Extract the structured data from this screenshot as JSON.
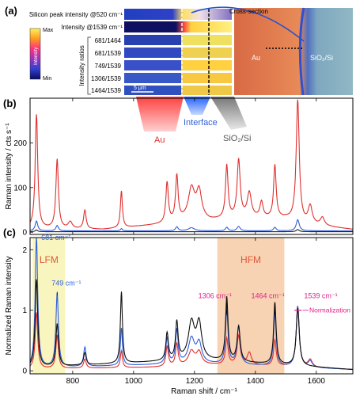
{
  "panel_a": {
    "tag": "(a)",
    "row_labels": [
      "Silicon peak intensity @520 cm⁻¹",
      "Intensity @1539 cm⁻¹"
    ],
    "ratio_labels": [
      "681/1464",
      "681/1539",
      "749/1539",
      "1306/1539",
      "1464/1539"
    ],
    "ratio_axis_label": "Intensity ratios",
    "colorbar": {
      "max": "Max",
      "min": "Min",
      "mid": "Intensity"
    },
    "scalebar": "5 μm",
    "cross_section": "Cross-section",
    "photo_labels": {
      "au": "Au",
      "sio2": "SiO₂/Si"
    }
  },
  "funnels": {
    "au": "Au",
    "interface": "Interface",
    "sio2": "SiO₂/Si"
  },
  "colors": {
    "au": "#e03030",
    "interface": "#2f5fd8",
    "sio2": "#222222",
    "magenta": "#e0208a"
  },
  "chart_data": [
    {
      "type": "line",
      "tag": "(b)",
      "ylabel": "Raman intensity / cts s⁻¹",
      "xlim": [
        660,
        1720
      ],
      "ylim": [
        -5,
        300
      ],
      "yticks": [
        "0",
        "100",
        "200"
      ],
      "series": [
        {
          "name": "Au",
          "color": "#e03030",
          "peaks": [
            [
              681,
              255,
              5
            ],
            [
              749,
              155,
              5
            ],
            [
              792,
              15,
              8
            ],
            [
              840,
              42,
              5
            ],
            [
              960,
              82,
              4
            ],
            [
              1110,
              90,
              5
            ],
            [
              1142,
              100,
              5
            ],
            [
              1190,
              65,
              12
            ],
            [
              1215,
              60,
              10
            ],
            [
              1306,
              118,
              5
            ],
            [
              1345,
              128,
              6
            ],
            [
              1380,
              55,
              8
            ],
            [
              1420,
              35,
              6
            ],
            [
              1464,
              118,
              5
            ],
            [
              1539,
              272,
              6
            ],
            [
              1580,
              40,
              8
            ],
            [
              1620,
              18,
              8
            ]
          ],
          "baseline": [
            [
              660,
              8
            ],
            [
              900,
              6
            ],
            [
              1100,
              18
            ],
            [
              1200,
              32
            ],
            [
              1250,
              26
            ],
            [
              1350,
              32
            ],
            [
              1500,
              30
            ],
            [
              1560,
              18
            ],
            [
              1720,
              6
            ]
          ]
        },
        {
          "name": "Interface",
          "color": "#2f5fd8",
          "peaks": [
            [
              681,
              22,
              5
            ],
            [
              749,
              12,
              5
            ],
            [
              960,
              5,
              4
            ],
            [
              1142,
              9,
              5
            ],
            [
              1190,
              7,
              12
            ],
            [
              1306,
              8,
              5
            ],
            [
              1345,
              10,
              6
            ],
            [
              1464,
              8,
              5
            ],
            [
              1539,
              25,
              6
            ]
          ],
          "baseline": [
            [
              660,
              3
            ],
            [
              1720,
              3
            ]
          ]
        },
        {
          "name": "SiO₂/Si",
          "color": "#222222",
          "peaks": [
            [
              681,
              4,
              5
            ],
            [
              1539,
              5,
              6
            ]
          ],
          "baseline": [
            [
              660,
              1
            ],
            [
              1720,
              1
            ]
          ]
        }
      ]
    },
    {
      "type": "line",
      "tag": "(c)",
      "xlabel": "Raman shift / cm⁻¹",
      "ylabel": "Normalized Raman intensity",
      "xlim": [
        660,
        1720
      ],
      "ylim": [
        -0.05,
        2.2
      ],
      "xticks": [
        "800",
        "1000",
        "1200",
        "1400",
        "1600"
      ],
      "yticks": [
        "0",
        "1",
        "2"
      ],
      "regions": [
        {
          "label": "LFM",
          "from": 668,
          "to": 775,
          "color": "#f6f2a8"
        },
        {
          "label": "HFM",
          "from": 1275,
          "to": 1495,
          "color": "#f4c49a"
        }
      ],
      "annotations": [
        {
          "text": "681 cm⁻¹",
          "x": 681,
          "y": 2.12,
          "color": "#2f5fd8"
        },
        {
          "text": "749 cm⁻¹",
          "x": 749,
          "y": 1.33,
          "color": "#2f5fd8"
        },
        {
          "text": "1306 cm⁻¹",
          "x": 1306,
          "y": 1.15,
          "color": "#e0208a"
        },
        {
          "text": "1464 cm⁻¹",
          "x": 1464,
          "y": 1.15,
          "color": "#e0208a"
        },
        {
          "text": "1539 cm⁻¹",
          "x": 1539,
          "y": 1.15,
          "color": "#e0208a"
        },
        {
          "text": "Normalization",
          "x": 1539,
          "y": 1.0,
          "color": "#e0208a"
        }
      ],
      "series": [
        {
          "name": "Au",
          "color": "#e03030",
          "peaks": [
            [
              681,
              0.93,
              5
            ],
            [
              749,
              0.55,
              5
            ],
            [
              840,
              0.15,
              5
            ],
            [
              960,
              0.28,
              4
            ],
            [
              1110,
              0.33,
              5
            ],
            [
              1142,
              0.36,
              5
            ],
            [
              1190,
              0.22,
              12
            ],
            [
              1215,
              0.2,
              10
            ],
            [
              1306,
              0.43,
              5
            ],
            [
              1345,
              0.47,
              6
            ],
            [
              1380,
              0.2,
              8
            ],
            [
              1464,
              0.43,
              5
            ],
            [
              1539,
              1.0,
              6
            ],
            [
              1580,
              0.12,
              8
            ]
          ],
          "baseline": [
            [
              660,
              0.03
            ],
            [
              1100,
              0.06
            ],
            [
              1200,
              0.1
            ],
            [
              1350,
              0.1
            ],
            [
              1560,
              0.06
            ],
            [
              1720,
              0.02
            ]
          ]
        },
        {
          "name": "Interface",
          "color": "#2f5fd8",
          "peaks": [
            [
              681,
              2.15,
              5
            ],
            [
              749,
              1.22,
              5
            ],
            [
              840,
              0.32,
              5
            ],
            [
              960,
              0.62,
              4
            ],
            [
              1110,
              0.42,
              5
            ],
            [
              1142,
              0.55,
              5
            ],
            [
              1190,
              0.4,
              12
            ],
            [
              1215,
              0.32,
              10
            ],
            [
              1306,
              0.88,
              5
            ],
            [
              1345,
              0.62,
              6
            ],
            [
              1464,
              0.88,
              5
            ],
            [
              1539,
              1.0,
              6
            ],
            [
              1580,
              0.1,
              8
            ]
          ],
          "baseline": [
            [
              660,
              0.04
            ],
            [
              1200,
              0.12
            ],
            [
              1350,
              0.1
            ],
            [
              1720,
              0.02
            ]
          ]
        },
        {
          "name": "SiO₂/Si",
          "color": "#111111",
          "peaks": [
            [
              681,
              1.45,
              5
            ],
            [
              749,
              0.7,
              5
            ],
            [
              840,
              0.2,
              5
            ],
            [
              960,
              1.18,
              4
            ],
            [
              1110,
              0.45,
              5
            ],
            [
              1142,
              0.62,
              5
            ],
            [
              1190,
              0.6,
              12
            ],
            [
              1215,
              0.58,
              10
            ],
            [
              1306,
              1.05,
              5
            ],
            [
              1345,
              0.58,
              6
            ],
            [
              1464,
              1.02,
              5
            ],
            [
              1539,
              0.95,
              6
            ]
          ],
          "baseline": [
            [
              660,
              0.05
            ],
            [
              1200,
              0.18
            ],
            [
              1350,
              0.14
            ],
            [
              1720,
              0.02
            ]
          ]
        }
      ]
    }
  ]
}
